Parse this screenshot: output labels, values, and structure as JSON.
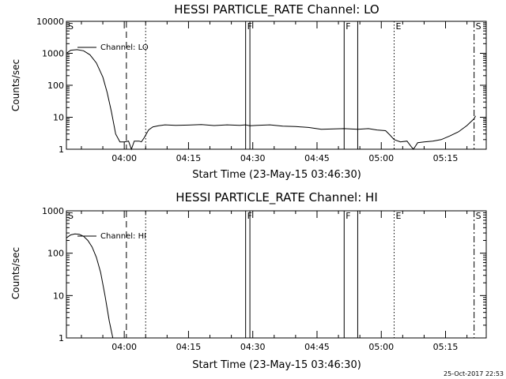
{
  "stamp": "25-Oct-2017 22:53",
  "chart_data": [
    {
      "type": "line",
      "title": "HESSI PARTICLE_RATE Channel: LO",
      "xlabel": "Start Time (23-May-15 03:46:30)",
      "ylabel": "Counts/sec",
      "legend": "Channel: LO",
      "legend_placement": "top-left",
      "log_y": true,
      "ylim": [
        1,
        10000
      ],
      "xlim": [
        "03:46:30",
        "05:24:30"
      ],
      "x_ticks": [
        "04:00",
        "04:15",
        "04:30",
        "04:45",
        "05:00",
        "05:15"
      ],
      "y_ticks": [
        "1",
        "10",
        "100",
        "1000",
        "10000"
      ],
      "grid": false,
      "markers": [
        {
          "time": "03:46:30",
          "label": "S",
          "style": "dashdot"
        },
        {
          "time": "04:00:30",
          "label": "",
          "style": "dashed"
        },
        {
          "time": "04:05:00",
          "label": "",
          "style": "dotted"
        },
        {
          "time": "04:28:20",
          "label": "F",
          "style": "solid"
        },
        {
          "time": "04:29:20",
          "label": "",
          "style": "solid"
        },
        {
          "time": "04:51:20",
          "label": "F",
          "style": "solid"
        },
        {
          "time": "04:54:30",
          "label": "",
          "style": "solid"
        },
        {
          "time": "05:03:00",
          "label": "E",
          "style": "dotted"
        },
        {
          "time": "05:21:40",
          "label": "S",
          "style": "dashdot"
        }
      ],
      "series": [
        {
          "name": "Channel: LO",
          "points": [
            [
              "03:46:30",
              1000
            ],
            [
              "03:47:30",
              1250
            ],
            [
              "03:49:00",
              1300
            ],
            [
              "03:50:30",
              1200
            ],
            [
              "03:52:00",
              900
            ],
            [
              "03:53:30",
              500
            ],
            [
              "03:55:00",
              180
            ],
            [
              "03:56:00",
              60
            ],
            [
              "03:57:00",
              15
            ],
            [
              "03:58:00",
              3
            ],
            [
              "03:59:00",
              1.7
            ],
            [
              "04:00:00",
              1.7
            ],
            [
              "04:01:00",
              1.8
            ],
            [
              "04:01:40",
              1.0
            ],
            [
              "04:02:20",
              1.8
            ],
            [
              "04:03:30",
              1.8
            ],
            [
              "04:04:00",
              1.7
            ],
            [
              "04:04:40",
              2.3
            ],
            [
              "04:05:40",
              4
            ],
            [
              "04:06:40",
              5
            ],
            [
              "04:08:00",
              5.4
            ],
            [
              "04:09:30",
              5.8
            ],
            [
              "04:12:00",
              5.6
            ],
            [
              "04:15:00",
              5.7
            ],
            [
              "04:18:00",
              5.9
            ],
            [
              "04:21:00",
              5.5
            ],
            [
              "04:24:00",
              5.8
            ],
            [
              "04:27:00",
              5.6
            ],
            [
              "04:28:20",
              5.8
            ],
            [
              "04:29:20",
              5.4
            ],
            [
              "04:31:00",
              5.6
            ],
            [
              "04:34:00",
              5.8
            ],
            [
              "04:37:00",
              5.3
            ],
            [
              "04:40:00",
              5.1
            ],
            [
              "04:43:00",
              4.8
            ],
            [
              "04:46:00",
              4.2
            ],
            [
              "04:49:00",
              4.3
            ],
            [
              "04:51:20",
              4.4
            ],
            [
              "04:54:30",
              4.2
            ],
            [
              "04:57:00",
              4.4
            ],
            [
              "04:59:00",
              4.0
            ],
            [
              "05:01:00",
              3.8
            ],
            [
              "05:02:00",
              2.8
            ],
            [
              "05:03:00",
              2.0
            ],
            [
              "05:04:30",
              1.7
            ],
            [
              "05:06:00",
              1.8
            ],
            [
              "05:07:00",
              1.2
            ],
            [
              "05:07:30",
              1.0
            ],
            [
              "05:08:30",
              1.6
            ],
            [
              "05:10:00",
              1.7
            ],
            [
              "05:12:00",
              1.8
            ],
            [
              "05:14:00",
              2.0
            ],
            [
              "05:16:00",
              2.6
            ],
            [
              "05:18:00",
              3.5
            ],
            [
              "05:20:00",
              5.5
            ],
            [
              "05:21:40",
              9
            ],
            [
              "05:22:00",
              11
            ]
          ]
        }
      ]
    },
    {
      "type": "line",
      "title": "HESSI PARTICLE_RATE Channel: HI",
      "xlabel": "Start Time (23-May-15 03:46:30)",
      "ylabel": "Counts/sec",
      "legend": "Channel: HI",
      "legend_placement": "top-left",
      "log_y": true,
      "ylim": [
        1,
        1000
      ],
      "xlim": [
        "03:46:30",
        "05:24:30"
      ],
      "x_ticks": [
        "04:00",
        "04:15",
        "04:30",
        "04:45",
        "05:00",
        "05:15"
      ],
      "y_ticks": [
        "1",
        "10",
        "100",
        "1000"
      ],
      "grid": false,
      "markers": [
        {
          "time": "03:46:30",
          "label": "S",
          "style": "dashdot"
        },
        {
          "time": "04:00:30",
          "label": "",
          "style": "dashed"
        },
        {
          "time": "04:05:00",
          "label": "",
          "style": "dotted"
        },
        {
          "time": "04:28:20",
          "label": "F",
          "style": "solid"
        },
        {
          "time": "04:29:20",
          "label": "",
          "style": "solid"
        },
        {
          "time": "04:51:20",
          "label": "F",
          "style": "solid"
        },
        {
          "time": "04:54:30",
          "label": "",
          "style": "solid"
        },
        {
          "time": "05:03:00",
          "label": "E",
          "style": "dotted"
        },
        {
          "time": "05:21:40",
          "label": "S",
          "style": "dashdot"
        }
      ],
      "series": [
        {
          "name": "Channel: HI",
          "points": [
            [
              "03:46:30",
              230
            ],
            [
              "03:47:30",
              270
            ],
            [
              "03:48:30",
              285
            ],
            [
              "03:49:30",
              280
            ],
            [
              "03:50:30",
              250
            ],
            [
              "03:51:30",
              200
            ],
            [
              "03:52:30",
              140
            ],
            [
              "03:53:30",
              80
            ],
            [
              "03:54:30",
              35
            ],
            [
              "03:55:30",
              10
            ],
            [
              "03:56:30",
              2.5
            ],
            [
              "03:57:20",
              1
            ]
          ]
        }
      ]
    }
  ]
}
